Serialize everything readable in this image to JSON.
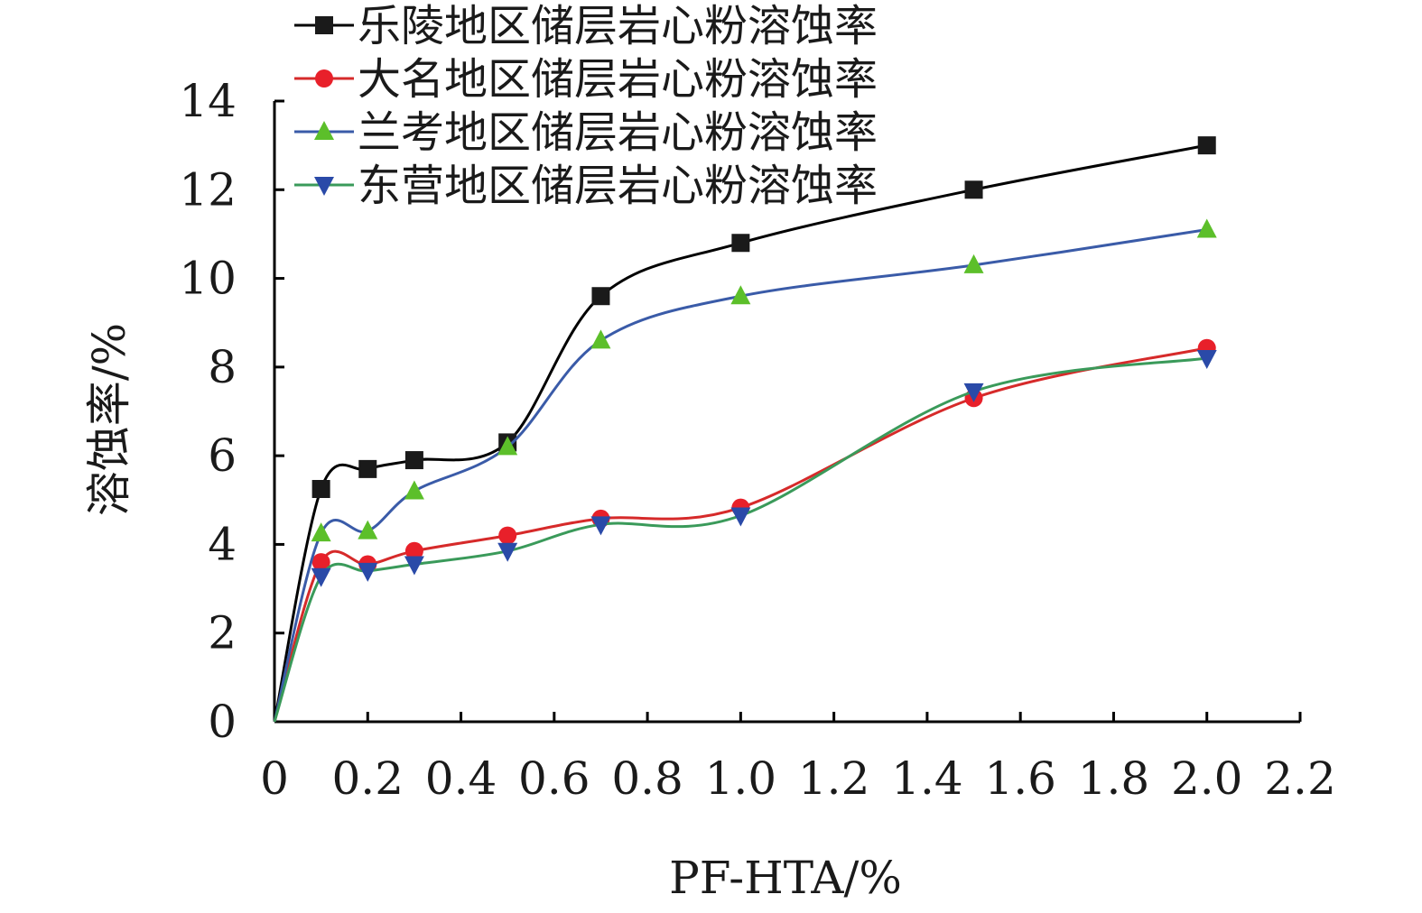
{
  "chart_data": {
    "type": "line",
    "title": "",
    "xlabel": "PF-HTA/%",
    "ylabel": "溶蚀率/%",
    "xlim": [
      0,
      2.2
    ],
    "ylim": [
      0,
      14
    ],
    "x_ticks": [
      "0",
      "0.2",
      "0.4",
      "0.6",
      "0.8",
      "1.0",
      "1.2",
      "1.4",
      "1.6",
      "1.8",
      "2.0",
      "2.2"
    ],
    "y_ticks": [
      "0",
      "2",
      "4",
      "6",
      "8",
      "10",
      "12",
      "14"
    ],
    "grid": false,
    "legend_position": "top-left",
    "smooth": true,
    "x": [
      0,
      0.1,
      0.2,
      0.3,
      0.5,
      0.7,
      1.0,
      1.5,
      2.0
    ],
    "series": [
      {
        "name": "乐陵地区储层岩心粉溶蚀率",
        "marker": "square",
        "line_color": "#000000",
        "marker_color": "#1a1a1a",
        "values": [
          0,
          5.25,
          5.7,
          5.9,
          6.3,
          9.6,
          10.8,
          12.0,
          13.0
        ]
      },
      {
        "name": "大名地区储层岩心粉溶蚀率",
        "marker": "circle",
        "line_color": "#d62a2a",
        "marker_color": "#e8202a",
        "values": [
          0,
          3.6,
          3.55,
          3.85,
          4.2,
          4.58,
          4.83,
          7.3,
          8.43
        ]
      },
      {
        "name": "兰考地区储层岩心粉溶蚀率",
        "marker": "triangle-up",
        "line_color": "#3a5ba8",
        "marker_color": "#5cbf2a",
        "values": [
          0,
          4.25,
          4.3,
          5.2,
          6.2,
          8.6,
          9.6,
          10.3,
          11.1
        ]
      },
      {
        "name": "东营地区储层岩心粉溶蚀率",
        "marker": "triangle-down",
        "line_color": "#3a9a5a",
        "marker_color": "#2a4aa8",
        "values": [
          0,
          3.28,
          3.4,
          3.55,
          3.85,
          4.45,
          4.65,
          7.45,
          8.2
        ]
      }
    ]
  }
}
